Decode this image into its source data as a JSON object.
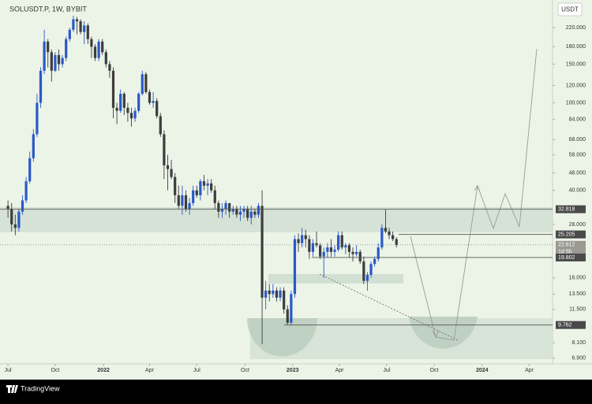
{
  "chart_data": {
    "type": "candlestick",
    "title": "SOLUSDT.P, 1W, BYBIT",
    "currency": "USDT",
    "brand": "TradingView",
    "log_scale": true,
    "colors": {
      "up": "#2a59c9",
      "down": "#3d3d3d"
    },
    "ylim": [
      6.5,
      249
    ],
    "yticks": [
      {
        "value": 220,
        "label": "220.000"
      },
      {
        "value": 180,
        "label": "180.000"
      },
      {
        "value": 150,
        "label": "150.000"
      },
      {
        "value": 120,
        "label": "120.000"
      },
      {
        "value": 100,
        "label": "100.000"
      },
      {
        "value": 84,
        "label": "84.000"
      },
      {
        "value": 68,
        "label": "68.000"
      },
      {
        "value": 58,
        "label": "58.000"
      },
      {
        "value": 48,
        "label": "48.000"
      },
      {
        "value": 40,
        "label": "40.000"
      },
      {
        "value": 28,
        "label": "28.000"
      },
      {
        "value": 16,
        "label": "16.000"
      },
      {
        "value": 13.5,
        "label": "13.500"
      },
      {
        "value": 11.5,
        "label": "11.500"
      },
      {
        "value": 8.1,
        "label": "8.100"
      },
      {
        "value": 6.9,
        "label": "6.900"
      }
    ],
    "xlim": [
      -2.2,
      150
    ],
    "xticks": [
      {
        "value": 0,
        "label": "Jul"
      },
      {
        "value": 13,
        "label": "Oct"
      },
      {
        "value": 26.3,
        "label": "2022"
      },
      {
        "value": 39,
        "label": "Apr"
      },
      {
        "value": 52,
        "label": "Jul"
      },
      {
        "value": 65.3,
        "label": "Oct"
      },
      {
        "value": 78.4,
        "label": "2023"
      },
      {
        "value": 91.3,
        "label": "Apr"
      },
      {
        "value": 104.3,
        "label": "Jul"
      },
      {
        "value": 117.4,
        "label": "Oct"
      },
      {
        "value": 130.6,
        "label": "2024"
      },
      {
        "value": 143.6,
        "label": "Apr"
      }
    ],
    "levels": [
      32.818,
      25.205,
      22.612,
      19.802,
      9.762
    ],
    "countdown": "1d 5h",
    "ohlc": [
      [
        34,
        36,
        30,
        33
      ],
      [
        33,
        35,
        26,
        28
      ],
      [
        28,
        31,
        25,
        27
      ],
      [
        27,
        33,
        26,
        32
      ],
      [
        32,
        38,
        31,
        36
      ],
      [
        36,
        46,
        35,
        44
      ],
      [
        44,
        60,
        43,
        56
      ],
      [
        56,
        76,
        54,
        72
      ],
      [
        72,
        110,
        70,
        100
      ],
      [
        100,
        145,
        95,
        140
      ],
      [
        140,
        215,
        135,
        190
      ],
      [
        190,
        195,
        145,
        170
      ],
      [
        170,
        175,
        125,
        140
      ],
      [
        140,
        170,
        138,
        165
      ],
      [
        165,
        175,
        140,
        150
      ],
      [
        150,
        165,
        145,
        160
      ],
      [
        160,
        200,
        155,
        195
      ],
      [
        195,
        220,
        190,
        215
      ],
      [
        215,
        249,
        210,
        240
      ],
      [
        240,
        246,
        205,
        235
      ],
      [
        235,
        240,
        205,
        210
      ],
      [
        210,
        235,
        185,
        225
      ],
      [
        225,
        230,
        185,
        195
      ],
      [
        195,
        200,
        160,
        180
      ],
      [
        180,
        185,
        155,
        160
      ],
      [
        160,
        195,
        155,
        190
      ],
      [
        190,
        195,
        165,
        170
      ],
      [
        170,
        175,
        145,
        150
      ],
      [
        150,
        155,
        130,
        140
      ],
      [
        140,
        145,
        85,
        95
      ],
      [
        95,
        100,
        80,
        92
      ],
      [
        92,
        115,
        90,
        110
      ],
      [
        110,
        112,
        88,
        95
      ],
      [
        95,
        100,
        82,
        90
      ],
      [
        90,
        95,
        78,
        85
      ],
      [
        85,
        95,
        82,
        92
      ],
      [
        92,
        112,
        90,
        110
      ],
      [
        110,
        140,
        108,
        135
      ],
      [
        135,
        138,
        110,
        112
      ],
      [
        112,
        115,
        98,
        100
      ],
      [
        100,
        112,
        95,
        102
      ],
      [
        102,
        105,
        85,
        87
      ],
      [
        87,
        90,
        70,
        72
      ],
      [
        72,
        75,
        45,
        52
      ],
      [
        52,
        58,
        40,
        50
      ],
      [
        50,
        55,
        45,
        46
      ],
      [
        46,
        48,
        35,
        38
      ],
      [
        38,
        42,
        33,
        34
      ],
      [
        34,
        42,
        31,
        38
      ],
      [
        38,
        40,
        32,
        33
      ],
      [
        33,
        37,
        31,
        35
      ],
      [
        35,
        42,
        34,
        40
      ],
      [
        40,
        42,
        37,
        38
      ],
      [
        38,
        45,
        36,
        44
      ],
      [
        44,
        47,
        40,
        42
      ],
      [
        42,
        45,
        38,
        43
      ],
      [
        43,
        45,
        39,
        40
      ],
      [
        40,
        42,
        33,
        35
      ],
      [
        35,
        36,
        30,
        32
      ],
      [
        32,
        35,
        30,
        33
      ],
      [
        33,
        36,
        31,
        35
      ],
      [
        35,
        35,
        30,
        32
      ],
      [
        32,
        34,
        31,
        33
      ],
      [
        33,
        34,
        30,
        31
      ],
      [
        31,
        34,
        29,
        32
      ],
      [
        32,
        34,
        30,
        33
      ],
      [
        33,
        34,
        29,
        30
      ],
      [
        30,
        34,
        28,
        32
      ],
      [
        32,
        33,
        30,
        31
      ],
      [
        31,
        35,
        30,
        34
      ],
      [
        34,
        40,
        8,
        13
      ],
      [
        13,
        15.5,
        11.5,
        14
      ],
      [
        14,
        15,
        12.5,
        13.5
      ],
      [
        13.5,
        15,
        13,
        14
      ],
      [
        14,
        14.5,
        12.5,
        13
      ],
      [
        13,
        14.5,
        12.5,
        14
      ],
      [
        14,
        14.5,
        11,
        11.5
      ],
      [
        11.5,
        12,
        9.8,
        10
      ],
      [
        10,
        14,
        9.76,
        13.5
      ],
      [
        13.5,
        25,
        13,
        24
      ],
      [
        24,
        25.5,
        21,
        23
      ],
      [
        23,
        27,
        22,
        25
      ],
      [
        25,
        26.5,
        22,
        24
      ],
      [
        24,
        25,
        19.5,
        21
      ],
      [
        21,
        24,
        20,
        23
      ],
      [
        23,
        26,
        22,
        22.5
      ],
      [
        22.5,
        23,
        19.5,
        20
      ],
      [
        20,
        22,
        16,
        21
      ],
      [
        21,
        23,
        19.8,
        22
      ],
      [
        22,
        24,
        20,
        21
      ],
      [
        21,
        22.5,
        20,
        21.5
      ],
      [
        21.5,
        26,
        21,
        25
      ],
      [
        25,
        26,
        21.5,
        22
      ],
      [
        22,
        23,
        20.5,
        22.5
      ],
      [
        22.5,
        23,
        19.8,
        21
      ],
      [
        21,
        22,
        19,
        20.5
      ],
      [
        20.5,
        22.5,
        20,
        21
      ],
      [
        21,
        21.5,
        18.5,
        19
      ],
      [
        19,
        20,
        15,
        15.5
      ],
      [
        15.5,
        17,
        14,
        16.5
      ],
      [
        16.5,
        19,
        16,
        18.5
      ],
      [
        18.5,
        20,
        18,
        19.5
      ],
      [
        19.5,
        23,
        19,
        22
      ],
      [
        22,
        28,
        21.5,
        27
      ],
      [
        27,
        32.8,
        25.5,
        26
      ],
      [
        26,
        27,
        24,
        25
      ],
      [
        25,
        26,
        23.5,
        24
      ],
      [
        24,
        24.5,
        22,
        22.6
      ]
    ]
  }
}
